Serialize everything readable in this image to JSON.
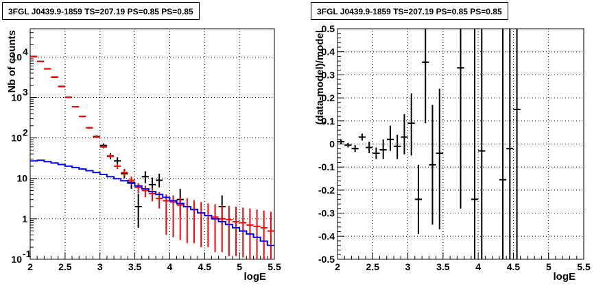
{
  "chart_data": [
    {
      "type": "scatter",
      "title": "3FGL J0439.9-1859 TS=207.19 PS=0.85 PS=0.85",
      "xlabel": "logE",
      "ylabel": "Nb of counts",
      "xlim": [
        2,
        5.5
      ],
      "ylim": [
        0.1,
        50000
      ],
      "yscale": "log",
      "grid": true,
      "x_ticks": [
        "2",
        "2.5",
        "3",
        "3.5",
        "4",
        "4.5",
        "5",
        "5.5"
      ],
      "y_ticks": [
        {
          "value": 0.1,
          "base": "10",
          "exp": "-1"
        },
        {
          "value": 1,
          "base": "1",
          "exp": ""
        },
        {
          "value": 10,
          "base": "10",
          "exp": ""
        },
        {
          "value": 100,
          "base": "10",
          "exp": "2"
        },
        {
          "value": 1000,
          "base": "10",
          "exp": "3"
        },
        {
          "value": 10000,
          "base": "10",
          "exp": "4"
        }
      ],
      "colors": {
        "data": "#000000",
        "model": "#ff0000",
        "curve": "#0000ff"
      },
      "series": [
        {
          "kind": "data",
          "x": [
            2.05,
            2.15,
            2.25,
            2.35,
            2.45,
            2.55,
            2.65,
            2.75,
            2.85,
            2.95,
            3.05,
            3.15,
            3.25,
            3.35,
            3.45,
            3.55,
            3.65,
            3.75,
            3.85,
            4.15,
            4.75
          ],
          "y": [
            10300,
            7800,
            5100,
            3200,
            1880,
            1010,
            590,
            340,
            178,
            108,
            65,
            35,
            27,
            13,
            8,
            2,
            11,
            7,
            9,
            3,
            2
          ],
          "ylow": [
            10200,
            7700,
            5000,
            3140,
            1840,
            980,
            570,
            325,
            168,
            101,
            57,
            30,
            22,
            10,
            5.5,
            0.6,
            7.5,
            4.5,
            6,
            1.2,
            0.7
          ],
          "yhigh": [
            10400,
            7900,
            5200,
            3260,
            1920,
            1040,
            610,
            355,
            188,
            115,
            73,
            42,
            33,
            17,
            11,
            4.2,
            15,
            10.5,
            13,
            5.5,
            3.8
          ]
        },
        {
          "kind": "model",
          "x": [
            2.05,
            2.15,
            2.25,
            2.35,
            2.45,
            2.55,
            2.65,
            2.75,
            2.85,
            2.95,
            3.05,
            3.15,
            3.25,
            3.35,
            3.45,
            3.55,
            3.65,
            3.75,
            3.85,
            3.95,
            4.05,
            4.15,
            4.25,
            4.35,
            4.45,
            4.55,
            4.65,
            4.75,
            4.85,
            4.95,
            5.05,
            5.15,
            5.25,
            5.35,
            5.45
          ],
          "y": [
            10100,
            7750,
            5100,
            3150,
            1850,
            1010,
            590,
            340,
            178,
            105,
            60,
            36,
            20,
            14,
            9,
            6,
            5,
            4.2,
            3.2,
            2.8,
            2.6,
            2.2,
            2.0,
            1.7,
            1.4,
            1.2,
            1.1,
            1.0,
            0.95,
            0.85,
            0.8,
            0.7,
            0.65,
            0.6,
            0.5
          ],
          "ylow": [
            10000,
            7650,
            5000,
            3090,
            1810,
            985,
            570,
            325,
            170,
            99,
            55,
            32,
            17,
            11.5,
            7,
            4.4,
            3.4,
            2.7,
            1.8,
            0.4,
            0.35,
            0.3,
            0.25,
            0.25,
            0.2,
            0.2,
            0.15,
            0.15,
            0.12,
            0.12,
            0.11,
            0.1,
            0.1,
            0.1,
            0.1
          ],
          "yhigh": [
            10200,
            7850,
            5200,
            3210,
            1890,
            1035,
            610,
            355,
            186,
            111,
            65,
            40,
            23,
            16.5,
            11,
            7.6,
            6.6,
            5.7,
            4.6,
            4.0,
            3.8,
            3.4,
            3.2,
            2.9,
            2.6,
            2.4,
            2.3,
            2.2,
            2.1,
            2.0,
            1.9,
            1.8,
            1.7,
            1.6,
            1.5
          ]
        },
        {
          "kind": "curve",
          "x": [
            2.0,
            2.1,
            2.2,
            2.3,
            2.4,
            2.5,
            2.6,
            2.7,
            2.8,
            2.9,
            3.0,
            3.1,
            3.2,
            3.3,
            3.4,
            3.5,
            3.6,
            3.7,
            3.8,
            3.9,
            4.0,
            4.1,
            4.2,
            4.3,
            4.4,
            4.5,
            4.6,
            4.7,
            4.8,
            4.9,
            5.0,
            5.1,
            5.2,
            5.3,
            5.4,
            5.5
          ],
          "y": [
            27,
            28,
            26,
            24,
            22,
            20,
            18.5,
            17,
            15.5,
            14,
            12.5,
            11,
            9.8,
            8.7,
            7.6,
            6.5,
            5.5,
            4.7,
            4.0,
            3.4,
            2.8,
            2.4,
            2.0,
            1.7,
            1.4,
            1.2,
            1.0,
            0.85,
            0.72,
            0.6,
            0.5,
            0.42,
            0.35,
            0.28,
            0.22,
            0.17
          ]
        }
      ]
    },
    {
      "type": "scatter",
      "title": "3FGL J0439.9-1859 TS=207.19 PS=0.85 PS=0.85",
      "xlabel": "logE",
      "ylabel": "(data-model)/model",
      "xlim": [
        2,
        5.5
      ],
      "ylim": [
        -0.5,
        0.5
      ],
      "grid": true,
      "x_ticks": [
        "2",
        "2.5",
        "3",
        "3.5",
        "4",
        "4.5",
        "5",
        "5.5"
      ],
      "y_ticks": [
        "-0.5",
        "-0.4",
        "-0.3",
        "-0.2",
        "-0.1",
        "0",
        "0.1",
        "0.2",
        "0.3",
        "0.4",
        "0.5"
      ],
      "colors": {
        "data": "#000000"
      },
      "series": [
        {
          "kind": "data",
          "x": [
            2.05,
            2.15,
            2.25,
            2.35,
            2.45,
            2.55,
            2.65,
            2.75,
            2.85,
            2.95,
            3.05,
            3.15,
            3.25,
            3.35,
            3.45,
            3.75,
            3.95,
            4.05,
            4.35,
            4.45,
            4.55
          ],
          "y": [
            0.01,
            -0.005,
            -0.02,
            0.03,
            -0.015,
            -0.04,
            -0.025,
            0.02,
            -0.01,
            0.03,
            0.09,
            -0.24,
            0.355,
            -0.09,
            -0.04,
            0.33,
            -0.24,
            -0.03,
            -0.155,
            -0.02,
            0.15
          ],
          "ylow": [
            0.0,
            -0.015,
            -0.035,
            0.015,
            -0.04,
            -0.065,
            -0.065,
            -0.03,
            -0.065,
            -0.045,
            -0.05,
            -0.39,
            0.09,
            -0.35,
            -0.37,
            -0.28,
            -0.5,
            -0.5,
            -0.5,
            -0.5,
            -0.5
          ],
          "yhigh": [
            0.02,
            0.005,
            -0.005,
            0.045,
            0.01,
            -0.015,
            0.02,
            0.08,
            0.04,
            0.13,
            0.22,
            -0.09,
            0.5,
            0.17,
            0.24,
            0.5,
            0.5,
            0.5,
            0.5,
            0.5,
            0.5
          ]
        }
      ]
    }
  ]
}
